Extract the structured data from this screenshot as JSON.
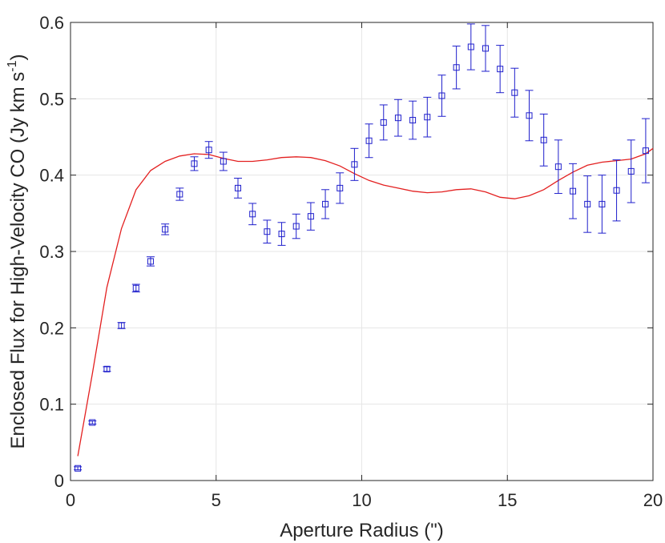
{
  "chart_data": {
    "type": "line",
    "title": "",
    "xlabel": "Aperture Radius (\")",
    "ylabel_main": "Enclosed Flux for High-Velocity CO (Jy km s",
    "ylabel_sup": "-1",
    "ylabel_close": ")",
    "xlim": [
      0,
      20
    ],
    "ylim": [
      0,
      0.6
    ],
    "x_ticks": [
      "0",
      "5",
      "10",
      "15",
      "20"
    ],
    "y_ticks": [
      "0",
      "0.1",
      "0.2",
      "0.3",
      "0.4",
      "0.5",
      "0.6"
    ],
    "grid": true,
    "colors": {
      "points": "#1f1fcc",
      "model": "#e32020",
      "axis": "#262626",
      "grid": "#e6e6e6"
    },
    "series": [
      {
        "style": "squares-with-errorbars",
        "x": [
          0.25,
          0.75,
          1.25,
          1.75,
          2.25,
          2.75,
          3.25,
          3.75,
          4.25,
          4.75,
          5.25,
          5.75,
          6.25,
          6.75,
          7.25,
          7.75,
          8.25,
          8.75,
          9.25,
          9.75,
          10.25,
          10.75,
          11.25,
          11.75,
          12.25,
          12.75,
          13.25,
          13.75,
          14.25,
          14.75,
          15.25,
          15.75,
          16.25,
          16.75,
          17.25,
          17.75,
          18.25,
          18.75,
          19.25,
          19.75
        ],
        "y": [
          0.016,
          0.076,
          0.146,
          0.203,
          0.252,
          0.287,
          0.329,
          0.375,
          0.415,
          0.433,
          0.418,
          0.383,
          0.349,
          0.326,
          0.323,
          0.333,
          0.346,
          0.362,
          0.383,
          0.414,
          0.445,
          0.469,
          0.475,
          0.472,
          0.476,
          0.504,
          0.541,
          0.568,
          0.566,
          0.539,
          0.508,
          0.478,
          0.446,
          0.411,
          0.379,
          0.362,
          0.362,
          0.38,
          0.405,
          0.432
        ],
        "err": [
          0.002,
          0.002,
          0.003,
          0.004,
          0.005,
          0.006,
          0.007,
          0.008,
          0.009,
          0.011,
          0.012,
          0.013,
          0.014,
          0.015,
          0.015,
          0.016,
          0.018,
          0.019,
          0.02,
          0.021,
          0.022,
          0.023,
          0.024,
          0.025,
          0.026,
          0.027,
          0.028,
          0.03,
          0.03,
          0.031,
          0.032,
          0.033,
          0.034,
          0.035,
          0.036,
          0.037,
          0.038,
          0.04,
          0.041,
          0.042
        ]
      },
      {
        "style": "line",
        "x": [
          0.25,
          0.75,
          1.25,
          1.75,
          2.25,
          2.75,
          3.25,
          3.75,
          4.25,
          4.75,
          5.25,
          5.75,
          6.25,
          6.75,
          7.25,
          7.75,
          8.25,
          8.75,
          9.25,
          9.75,
          10.25,
          10.75,
          11.25,
          11.75,
          12.25,
          12.75,
          13.25,
          13.75,
          14.25,
          14.75,
          15.25,
          15.75,
          16.25,
          16.75,
          17.25,
          17.75,
          18.25,
          18.75,
          19.25,
          19.75,
          20.0
        ],
        "y": [
          0.032,
          0.14,
          0.253,
          0.33,
          0.381,
          0.406,
          0.418,
          0.425,
          0.428,
          0.427,
          0.422,
          0.418,
          0.418,
          0.42,
          0.423,
          0.424,
          0.423,
          0.419,
          0.412,
          0.402,
          0.393,
          0.387,
          0.383,
          0.379,
          0.377,
          0.378,
          0.381,
          0.382,
          0.378,
          0.371,
          0.369,
          0.373,
          0.381,
          0.393,
          0.404,
          0.413,
          0.417,
          0.419,
          0.421,
          0.428,
          0.435
        ]
      }
    ]
  }
}
